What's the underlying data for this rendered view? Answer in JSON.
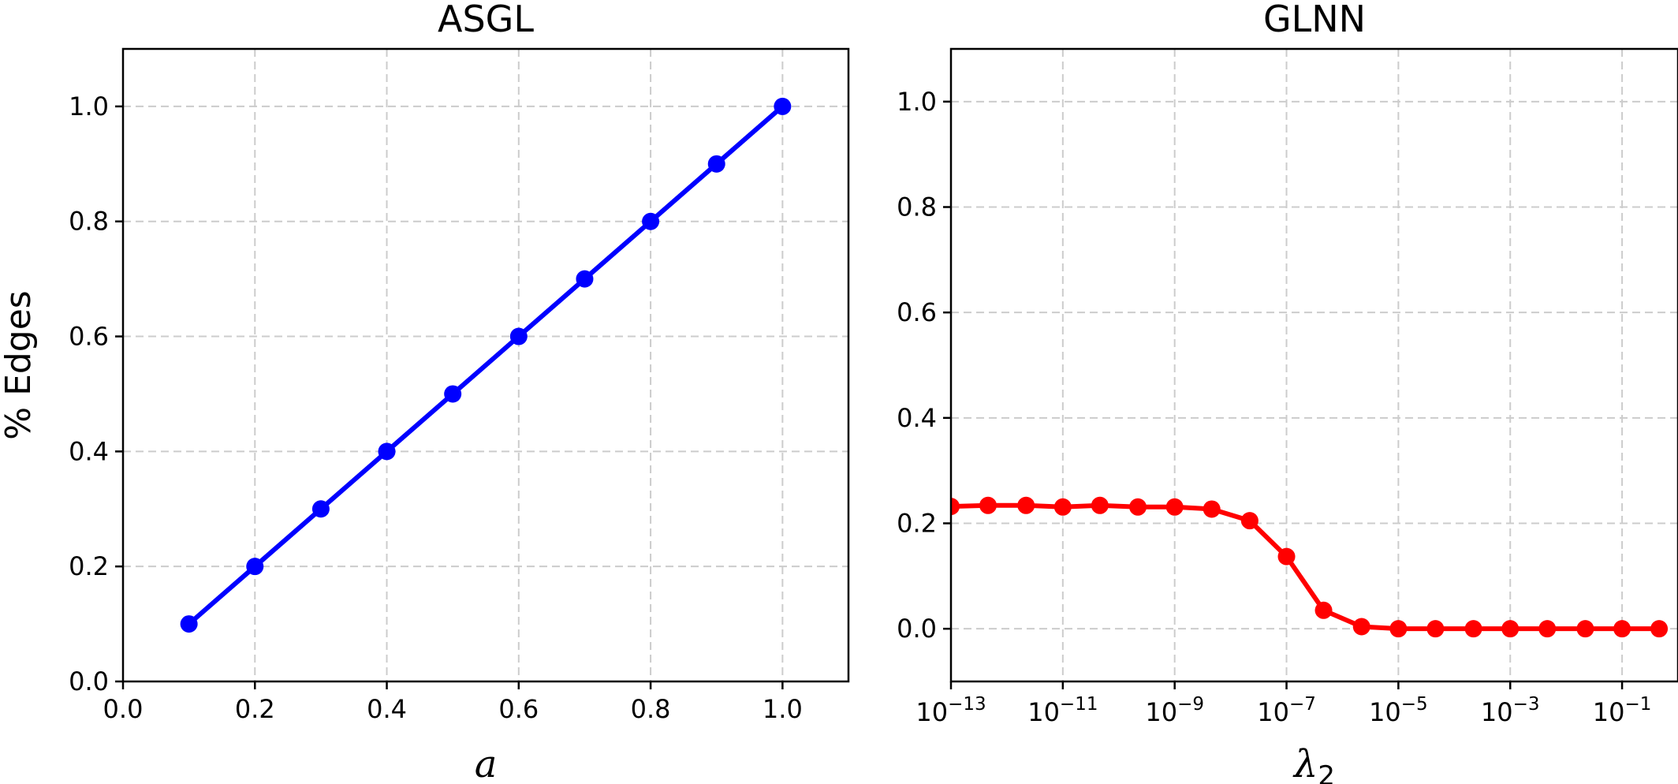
{
  "chart_data": [
    {
      "type": "line",
      "title": "ASGL",
      "xlabel": "a",
      "ylabel": "% Edges",
      "xlim": [
        0.0,
        1.1
      ],
      "ylim": [
        0.0,
        1.1
      ],
      "xticks": [
        0.0,
        0.2,
        0.4,
        0.6,
        0.8,
        1.0
      ],
      "xtick_labels": [
        "0.0",
        "0.2",
        "0.4",
        "0.6",
        "0.8",
        "1.0"
      ],
      "yticks": [
        0.0,
        0.2,
        0.4,
        0.6,
        0.8,
        1.0
      ],
      "ytick_labels": [
        "0.0",
        "0.2",
        "0.4",
        "0.6",
        "0.8",
        "1.0"
      ],
      "grid": true,
      "series": [
        {
          "color": "#0000ff",
          "marker": "circle",
          "x": [
            0.1,
            0.2,
            0.3,
            0.4,
            0.5,
            0.6,
            0.7,
            0.8,
            0.9,
            1.0
          ],
          "y": [
            0.1,
            0.2,
            0.3,
            0.4,
            0.5,
            0.6,
            0.7,
            0.8,
            0.9,
            1.0
          ]
        }
      ]
    },
    {
      "type": "line",
      "title": "GLNN",
      "xlabel": "λ",
      "xlabel_subscript": "2",
      "xscale": "log",
      "xlim": [
        1e-13,
        1
      ],
      "ylim": [
        -0.1,
        1.1
      ],
      "xticks": [
        1e-13,
        1e-11,
        1e-09,
        1e-07,
        1e-05,
        0.001,
        0.1
      ],
      "xtick_labels": [
        {
          "base": "10",
          "exp": "−13"
        },
        {
          "base": "10",
          "exp": "−11"
        },
        {
          "base": "10",
          "exp": "−9"
        },
        {
          "base": "10",
          "exp": "−7"
        },
        {
          "base": "10",
          "exp": "−5"
        },
        {
          "base": "10",
          "exp": "−3"
        },
        {
          "base": "10",
          "exp": "−1"
        }
      ],
      "yticks": [
        0.0,
        0.2,
        0.4,
        0.6,
        0.8,
        1.0
      ],
      "ytick_labels": [
        "0.0",
        "0.2",
        "0.4",
        "0.6",
        "0.8",
        "1.0"
      ],
      "grid": true,
      "series": [
        {
          "color": "#ff0000",
          "marker": "circle",
          "x": [
            1e-13,
            4.6e-13,
            2.2e-12,
            1e-11,
            4.6e-11,
            2.2e-10,
            1e-09,
            4.6e-09,
            2.2e-08,
            1e-07,
            4.6e-07,
            2.2e-06,
            1e-05,
            4.6e-05,
            0.00022,
            0.001,
            0.0046,
            0.022,
            0.1,
            0.46
          ],
          "y": [
            0.232,
            0.234,
            0.234,
            0.231,
            0.234,
            0.231,
            0.231,
            0.227,
            0.205,
            0.137,
            0.035,
            0.004,
            0.0,
            0.0,
            0.0,
            0.0,
            0.0,
            0.0,
            0.0,
            0.0
          ]
        }
      ]
    }
  ]
}
